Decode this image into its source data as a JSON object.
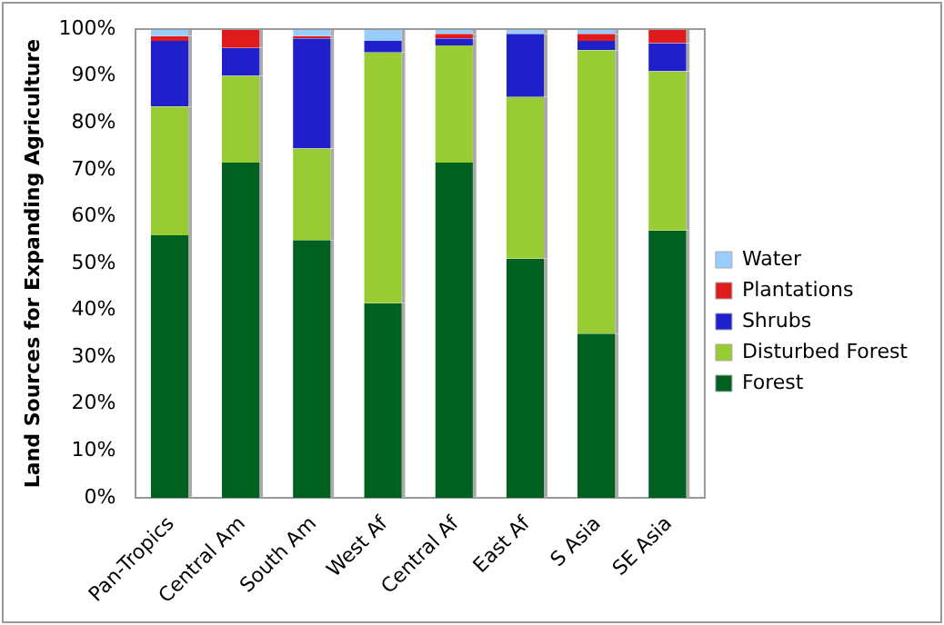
{
  "chart_data": {
    "type": "bar",
    "stacked": true,
    "ylabel": "Land Sources for Expanding Agriculture",
    "categories": [
      "Pan-Tropics",
      "Central Am",
      "South Am",
      "West Af",
      "Central Af",
      "East Af",
      "S Asia",
      "SE Asia"
    ],
    "series": [
      {
        "name": "Forest",
        "color": "#006020",
        "values": [
          56,
          71.5,
          55,
          41.5,
          71.5,
          51,
          35,
          57
        ]
      },
      {
        "name": "Disturbed Forest",
        "color": "#99cc33",
        "values": [
          27.5,
          18.5,
          19.5,
          53.5,
          25,
          34.5,
          60.5,
          34
        ]
      },
      {
        "name": "Shrubs",
        "color": "#1f1fcc",
        "values": [
          14,
          6,
          23.5,
          2.5,
          1.5,
          13.5,
          2,
          6
        ]
      },
      {
        "name": "Plantations",
        "color": "#e01b1b",
        "values": [
          1,
          4,
          0.5,
          0,
          1,
          0,
          1.5,
          3
        ]
      },
      {
        "name": "Water",
        "color": "#99ccff",
        "values": [
          1.5,
          0,
          1.5,
          2.5,
          1,
          1,
          1,
          0
        ]
      }
    ],
    "ylim": [
      0,
      100
    ],
    "yticks": [
      {
        "value": 0,
        "label": "0%"
      },
      {
        "value": 10,
        "label": "10%"
      },
      {
        "value": 20,
        "label": "20%"
      },
      {
        "value": 30,
        "label": "30%"
      },
      {
        "value": 40,
        "label": "40%"
      },
      {
        "value": 50,
        "label": "50%"
      },
      {
        "value": 60,
        "label": "60%"
      },
      {
        "value": 70,
        "label": "70%"
      },
      {
        "value": 80,
        "label": "80%"
      },
      {
        "value": 90,
        "label": "90%"
      },
      {
        "value": 100,
        "label": "100%"
      }
    ],
    "grid": false,
    "legend": "right"
  }
}
